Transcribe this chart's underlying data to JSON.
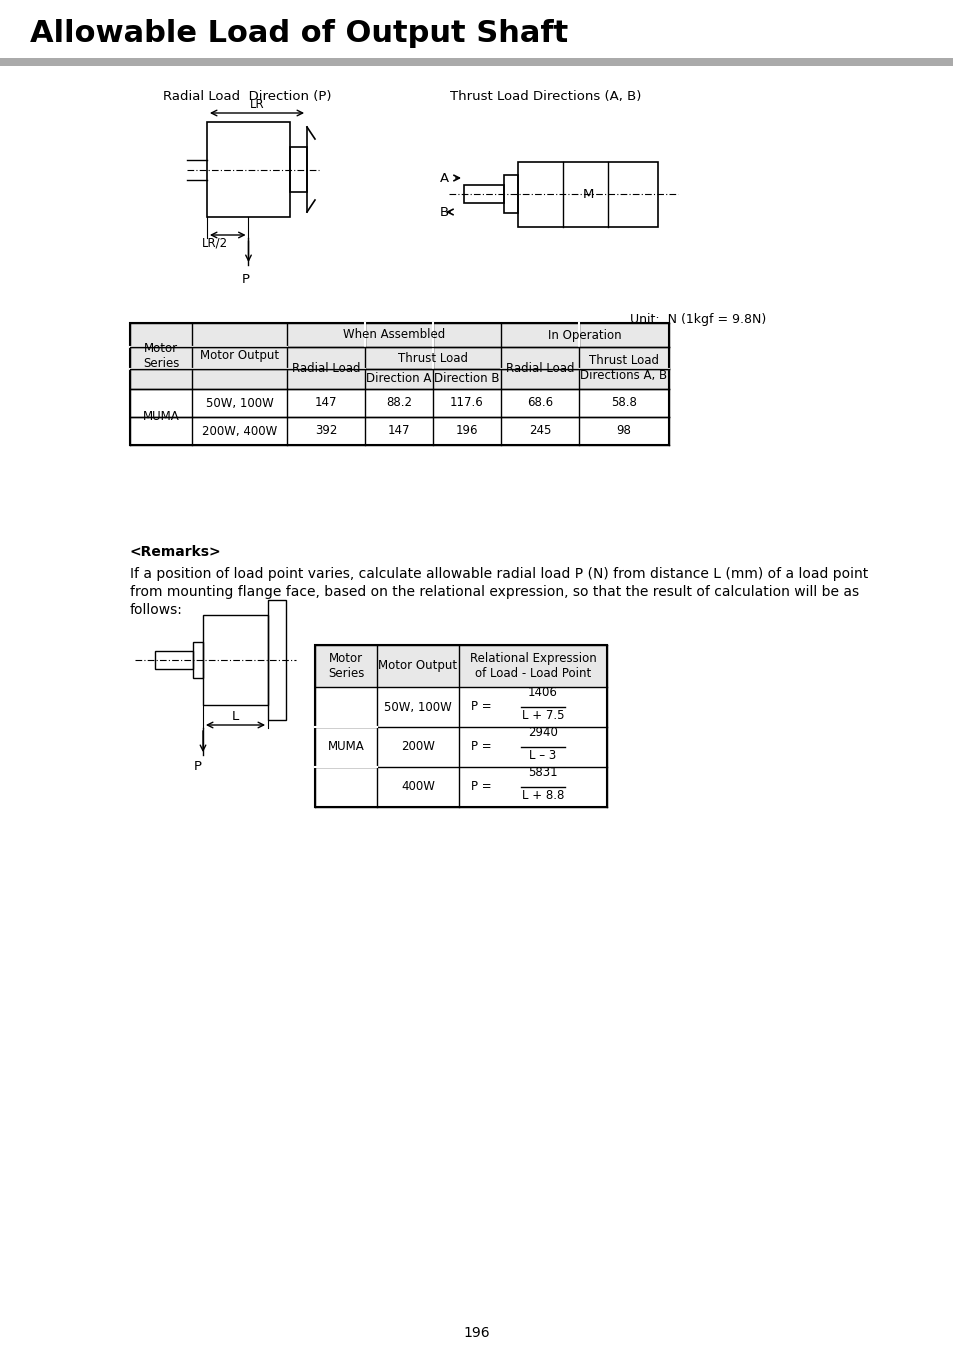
{
  "title": "Allowable Load of Output Shaft",
  "bg_color": "#ffffff",
  "unit_note": "Unit:  N (1kgf = 9.8N)",
  "table1_data": [
    [
      "MUMA",
      "50W, 100W",
      "147",
      "88.2",
      "117.6",
      "68.6",
      "58.8"
    ],
    [
      "",
      "200W, 400W",
      "392",
      "147",
      "196",
      "245",
      "98"
    ]
  ],
  "remarks_title": "<Remarks>",
  "remarks_text1": "If a position of load point varies, calculate allowable radial load P (N) from distance L (mm) of a load point",
  "remarks_text2": "from mounting flange face, based on the relational expression, so that the result of calculation will be as",
  "remarks_text3": "follows:",
  "table2_rows": [
    {
      "series": "MUMA",
      "output": "50W, 100W",
      "num": "1406",
      "den": "L + 7.5"
    },
    {
      "series": "",
      "output": "200W",
      "num": "2940",
      "den": "L – 3"
    },
    {
      "series": "",
      "output": "400W",
      "num": "5831",
      "den": "L + 8.8"
    }
  ],
  "page_number": "196",
  "gray": "#e8e8e8"
}
